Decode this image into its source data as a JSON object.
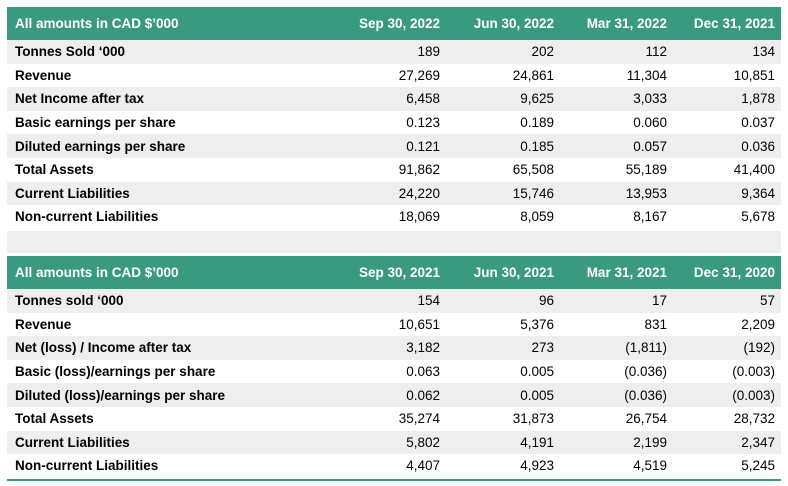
{
  "table1": {
    "header": {
      "label": "All amounts in CAD $’000",
      "periods": [
        "Sep 30, 2022",
        "Jun 30, 2022",
        "Mar 31, 2022",
        "Dec 31, 2021"
      ]
    },
    "rows": [
      {
        "label": "Tonnes Sold ‘000",
        "values": [
          "189",
          "202",
          "112",
          "134"
        ]
      },
      {
        "label": "Revenue",
        "values": [
          "27,269",
          "24,861",
          "11,304",
          "10,851"
        ]
      },
      {
        "label": "Net Income after tax",
        "values": [
          "6,458",
          "9,625",
          "3,033",
          "1,878"
        ]
      },
      {
        "label": "Basic earnings per share",
        "values": [
          "0.123",
          "0.189",
          "0.060",
          "0.037"
        ]
      },
      {
        "label": "Diluted earnings per share",
        "values": [
          "0.121",
          "0.185",
          "0.057",
          "0.036"
        ]
      },
      {
        "label": "Total Assets",
        "values": [
          "91,862",
          "65,508",
          "55,189",
          "41,400"
        ]
      },
      {
        "label": "Current Liabilities",
        "values": [
          "24,220",
          "15,746",
          "13,953",
          "9,364"
        ]
      },
      {
        "label": "Non-current Liabilities",
        "values": [
          "18,069",
          "8,059",
          "8,167",
          "5,678"
        ]
      }
    ]
  },
  "table2": {
    "header": {
      "label": "All amounts in CAD $’000",
      "periods": [
        "Sep 30, 2021",
        "Jun 30, 2021",
        "Mar 31, 2021",
        "Dec 31, 2020"
      ]
    },
    "rows": [
      {
        "label": "Tonnes sold ‘000",
        "values": [
          "154",
          "96",
          "17",
          "57"
        ]
      },
      {
        "label": "Revenue",
        "values": [
          "10,651",
          "5,376",
          "831",
          "2,209"
        ]
      },
      {
        "label": "Net (loss) / Income after tax",
        "values": [
          "3,182",
          "273",
          "(1,811)",
          "(192)"
        ]
      },
      {
        "label": "Basic (loss)/earnings per share",
        "values": [
          "0.063",
          "0.005",
          "(0.036)",
          "(0.003)"
        ]
      },
      {
        "label": "Diluted (loss)/earnings per share",
        "values": [
          "0.062",
          "0.005",
          "(0.036)",
          "(0.003)"
        ]
      },
      {
        "label": "Total Assets",
        "values": [
          "35,274",
          "31,873",
          "26,754",
          "28,732"
        ]
      },
      {
        "label": "Current Liabilities",
        "values": [
          "5,802",
          "4,191",
          "2,199",
          "2,347"
        ]
      },
      {
        "label": "Non-current Liabilities",
        "values": [
          "4,407",
          "4,923",
          "4,519",
          "5,245"
        ]
      }
    ]
  },
  "colors": {
    "header_bg": "#3a9a80",
    "header_text": "#ffffff",
    "row_shade": "#eeeeee"
  }
}
